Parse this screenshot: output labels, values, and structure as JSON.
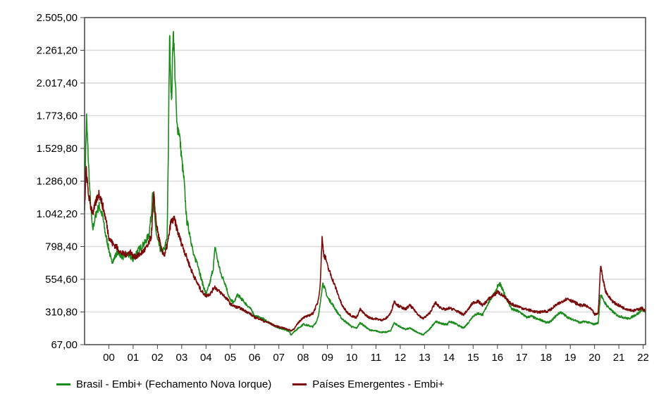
{
  "chart_data": {
    "type": "line",
    "y_ticks": [
      "67,00",
      "310,80",
      "554,60",
      "798,40",
      "1.042,20",
      "1.286,00",
      "1.529,80",
      "1.773,60",
      "2.017,40",
      "2.261,20",
      "2.505,00"
    ],
    "ylim": [
      67,
      2505
    ],
    "x_ticks": [
      "00",
      "01",
      "02",
      "03",
      "04",
      "05",
      "06",
      "07",
      "08",
      "09",
      "10",
      "11",
      "12",
      "13",
      "14",
      "15",
      "16",
      "17",
      "18",
      "19",
      "20",
      "21",
      "22"
    ],
    "xlim": [
      1999.0,
      2022.1
    ],
    "grid": true,
    "legend_position": "bottom-left",
    "series": [
      {
        "name": "Brasil - Embi+ (Fechamento Nova Iorque)",
        "color": "#1a8a1a",
        "points": [
          [
            1999.0,
            1150
          ],
          [
            1999.08,
            1760
          ],
          [
            1999.17,
            1380
          ],
          [
            1999.25,
            1100
          ],
          [
            1999.33,
            920
          ],
          [
            1999.42,
            1000
          ],
          [
            1999.5,
            1060
          ],
          [
            1999.6,
            1100
          ],
          [
            1999.75,
            1020
          ],
          [
            1999.85,
            900
          ],
          [
            2000.0,
            780
          ],
          [
            2000.1,
            690
          ],
          [
            2000.2,
            700
          ],
          [
            2000.35,
            760
          ],
          [
            2000.5,
            730
          ],
          [
            2000.6,
            720
          ],
          [
            2000.75,
            740
          ],
          [
            2000.9,
            720
          ],
          [
            2001.0,
            700
          ],
          [
            2001.15,
            760
          ],
          [
            2001.3,
            790
          ],
          [
            2001.5,
            830
          ],
          [
            2001.65,
            890
          ],
          [
            2001.75,
            1040
          ],
          [
            2001.8,
            1230
          ],
          [
            2001.85,
            1080
          ],
          [
            2001.95,
            900
          ],
          [
            2002.0,
            850
          ],
          [
            2002.15,
            760
          ],
          [
            2002.3,
            780
          ],
          [
            2002.4,
            880
          ],
          [
            2002.45,
            1500
          ],
          [
            2002.5,
            2390
          ],
          [
            2002.58,
            1850
          ],
          [
            2002.65,
            2440
          ],
          [
            2002.72,
            2100
          ],
          [
            2002.8,
            1700
          ],
          [
            2002.9,
            1650
          ],
          [
            2003.0,
            1450
          ],
          [
            2003.1,
            1280
          ],
          [
            2003.2,
            1000
          ],
          [
            2003.35,
            880
          ],
          [
            2003.5,
            720
          ],
          [
            2003.65,
            680
          ],
          [
            2003.8,
            560
          ],
          [
            2003.95,
            470
          ],
          [
            2004.0,
            440
          ],
          [
            2004.15,
            520
          ],
          [
            2004.3,
            640
          ],
          [
            2004.38,
            800
          ],
          [
            2004.45,
            720
          ],
          [
            2004.6,
            600
          ],
          [
            2004.8,
            520
          ],
          [
            2004.95,
            420
          ],
          [
            2005.0,
            400
          ],
          [
            2005.15,
            380
          ],
          [
            2005.3,
            440
          ],
          [
            2005.5,
            400
          ],
          [
            2005.7,
            360
          ],
          [
            2005.9,
            320
          ],
          [
            2006.0,
            280
          ],
          [
            2006.2,
            270
          ],
          [
            2006.35,
            260
          ],
          [
            2006.5,
            240
          ],
          [
            2006.7,
            220
          ],
          [
            2006.9,
            200
          ],
          [
            2007.0,
            190
          ],
          [
            2007.2,
            180
          ],
          [
            2007.4,
            170
          ],
          [
            2007.5,
            140
          ],
          [
            2007.6,
            160
          ],
          [
            2007.8,
            190
          ],
          [
            2007.95,
            210
          ],
          [
            2008.0,
            220
          ],
          [
            2008.2,
            210
          ],
          [
            2008.4,
            200
          ],
          [
            2008.55,
            240
          ],
          [
            2008.65,
            300
          ],
          [
            2008.72,
            390
          ],
          [
            2008.8,
            530
          ],
          [
            2008.9,
            480
          ],
          [
            2008.95,
            450
          ],
          [
            2009.0,
            420
          ],
          [
            2009.2,
            370
          ],
          [
            2009.4,
            310
          ],
          [
            2009.6,
            260
          ],
          [
            2009.8,
            230
          ],
          [
            2009.95,
            210
          ],
          [
            2010.0,
            200
          ],
          [
            2010.2,
            190
          ],
          [
            2010.35,
            230
          ],
          [
            2010.5,
            210
          ],
          [
            2010.7,
            180
          ],
          [
            2010.9,
            170
          ],
          [
            2011.0,
            170
          ],
          [
            2011.2,
            160
          ],
          [
            2011.4,
            160
          ],
          [
            2011.6,
            170
          ],
          [
            2011.75,
            230
          ],
          [
            2011.9,
            210
          ],
          [
            2012.0,
            200
          ],
          [
            2012.2,
            180
          ],
          [
            2012.4,
            190
          ],
          [
            2012.6,
            170
          ],
          [
            2012.8,
            150
          ],
          [
            2012.95,
            140
          ],
          [
            2013.0,
            150
          ],
          [
            2013.2,
            180
          ],
          [
            2013.45,
            240
          ],
          [
            2013.6,
            230
          ],
          [
            2013.8,
            220
          ],
          [
            2013.95,
            220
          ],
          [
            2014.0,
            240
          ],
          [
            2014.2,
            230
          ],
          [
            2014.4,
            210
          ],
          [
            2014.6,
            190
          ],
          [
            2014.8,
            230
          ],
          [
            2014.95,
            270
          ],
          [
            2015.0,
            280
          ],
          [
            2015.2,
            300
          ],
          [
            2015.4,
            290
          ],
          [
            2015.6,
            370
          ],
          [
            2015.8,
            430
          ],
          [
            2015.95,
            470
          ],
          [
            2016.0,
            500
          ],
          [
            2016.1,
            520
          ],
          [
            2016.2,
            480
          ],
          [
            2016.4,
            400
          ],
          [
            2016.6,
            330
          ],
          [
            2016.8,
            320
          ],
          [
            2017.0,
            300
          ],
          [
            2017.2,
            270
          ],
          [
            2017.4,
            280
          ],
          [
            2017.6,
            260
          ],
          [
            2017.8,
            250
          ],
          [
            2017.95,
            240
          ],
          [
            2018.0,
            230
          ],
          [
            2018.2,
            240
          ],
          [
            2018.4,
            280
          ],
          [
            2018.6,
            310
          ],
          [
            2018.75,
            290
          ],
          [
            2018.9,
            270
          ],
          [
            2019.0,
            260
          ],
          [
            2019.2,
            250
          ],
          [
            2019.4,
            230
          ],
          [
            2019.6,
            240
          ],
          [
            2019.8,
            230
          ],
          [
            2019.95,
            220
          ],
          [
            2020.0,
            220
          ],
          [
            2020.15,
            230
          ],
          [
            2020.25,
            450
          ],
          [
            2020.35,
            400
          ],
          [
            2020.5,
            360
          ],
          [
            2020.7,
            320
          ],
          [
            2020.9,
            290
          ],
          [
            2021.0,
            280
          ],
          [
            2021.2,
            270
          ],
          [
            2021.4,
            260
          ],
          [
            2021.6,
            280
          ],
          [
            2021.8,
            300
          ],
          [
            2021.95,
            330
          ],
          [
            2022.0,
            320
          ],
          [
            2022.1,
            310
          ]
        ]
      },
      {
        "name": "Países Emergentes - Embi+",
        "color": "#7a0a0a",
        "points": [
          [
            1999.0,
            1050
          ],
          [
            1999.06,
            1380
          ],
          [
            1999.15,
            1200
          ],
          [
            1999.25,
            1100
          ],
          [
            1999.35,
            1050
          ],
          [
            1999.5,
            1150
          ],
          [
            1999.6,
            1200
          ],
          [
            1999.75,
            1100
          ],
          [
            1999.9,
            980
          ],
          [
            2000.0,
            870
          ],
          [
            2000.15,
            820
          ],
          [
            2000.3,
            800
          ],
          [
            2000.5,
            750
          ],
          [
            2000.7,
            740
          ],
          [
            2000.9,
            760
          ],
          [
            2001.0,
            720
          ],
          [
            2001.2,
            730
          ],
          [
            2001.4,
            760
          ],
          [
            2001.6,
            800
          ],
          [
            2001.75,
            880
          ],
          [
            2001.85,
            1180
          ],
          [
            2001.95,
            980
          ],
          [
            2002.0,
            920
          ],
          [
            2002.15,
            780
          ],
          [
            2002.3,
            730
          ],
          [
            2002.45,
            850
          ],
          [
            2002.55,
            980
          ],
          [
            2002.7,
            1000
          ],
          [
            2002.85,
            900
          ],
          [
            2003.0,
            820
          ],
          [
            2003.2,
            720
          ],
          [
            2003.4,
            620
          ],
          [
            2003.6,
            540
          ],
          [
            2003.8,
            470
          ],
          [
            2004.0,
            430
          ],
          [
            2004.2,
            450
          ],
          [
            2004.35,
            500
          ],
          [
            2004.5,
            470
          ],
          [
            2004.7,
            440
          ],
          [
            2004.9,
            400
          ],
          [
            2005.0,
            370
          ],
          [
            2005.2,
            350
          ],
          [
            2005.4,
            340
          ],
          [
            2005.6,
            320
          ],
          [
            2005.8,
            300
          ],
          [
            2006.0,
            270
          ],
          [
            2006.2,
            260
          ],
          [
            2006.4,
            240
          ],
          [
            2006.6,
            230
          ],
          [
            2006.8,
            210
          ],
          [
            2007.0,
            200
          ],
          [
            2007.2,
            190
          ],
          [
            2007.4,
            180
          ],
          [
            2007.5,
            170
          ],
          [
            2007.65,
            190
          ],
          [
            2007.8,
            230
          ],
          [
            2007.95,
            260
          ],
          [
            2008.0,
            270
          ],
          [
            2008.2,
            280
          ],
          [
            2008.4,
            300
          ],
          [
            2008.6,
            380
          ],
          [
            2008.7,
            500
          ],
          [
            2008.78,
            860
          ],
          [
            2008.85,
            740
          ],
          [
            2008.95,
            700
          ],
          [
            2009.0,
            650
          ],
          [
            2009.2,
            560
          ],
          [
            2009.4,
            460
          ],
          [
            2009.6,
            360
          ],
          [
            2009.8,
            310
          ],
          [
            2009.95,
            290
          ],
          [
            2010.0,
            280
          ],
          [
            2010.2,
            270
          ],
          [
            2010.35,
            330
          ],
          [
            2010.5,
            300
          ],
          [
            2010.7,
            270
          ],
          [
            2010.9,
            260
          ],
          [
            2011.0,
            260
          ],
          [
            2011.2,
            250
          ],
          [
            2011.4,
            260
          ],
          [
            2011.6,
            300
          ],
          [
            2011.75,
            390
          ],
          [
            2011.9,
            360
          ],
          [
            2012.0,
            350
          ],
          [
            2012.2,
            330
          ],
          [
            2012.4,
            360
          ],
          [
            2012.6,
            320
          ],
          [
            2012.8,
            280
          ],
          [
            2012.95,
            260
          ],
          [
            2013.0,
            270
          ],
          [
            2013.2,
            300
          ],
          [
            2013.45,
            380
          ],
          [
            2013.6,
            350
          ],
          [
            2013.8,
            330
          ],
          [
            2013.95,
            330
          ],
          [
            2014.0,
            340
          ],
          [
            2014.2,
            330
          ],
          [
            2014.4,
            310
          ],
          [
            2014.6,
            290
          ],
          [
            2014.8,
            330
          ],
          [
            2014.95,
            370
          ],
          [
            2015.0,
            380
          ],
          [
            2015.2,
            390
          ],
          [
            2015.4,
            360
          ],
          [
            2015.6,
            400
          ],
          [
            2015.8,
            430
          ],
          [
            2015.95,
            450
          ],
          [
            2016.0,
            460
          ],
          [
            2016.1,
            450
          ],
          [
            2016.3,
            420
          ],
          [
            2016.5,
            380
          ],
          [
            2016.7,
            360
          ],
          [
            2016.9,
            350
          ],
          [
            2017.0,
            340
          ],
          [
            2017.2,
            330
          ],
          [
            2017.4,
            320
          ],
          [
            2017.6,
            310
          ],
          [
            2017.8,
            310
          ],
          [
            2017.95,
            320
          ],
          [
            2018.0,
            310
          ],
          [
            2018.2,
            330
          ],
          [
            2018.4,
            360
          ],
          [
            2018.6,
            380
          ],
          [
            2018.75,
            400
          ],
          [
            2018.9,
            410
          ],
          [
            2019.0,
            400
          ],
          [
            2019.2,
            380
          ],
          [
            2019.4,
            360
          ],
          [
            2019.6,
            360
          ],
          [
            2019.8,
            340
          ],
          [
            2019.95,
            310
          ],
          [
            2020.0,
            290
          ],
          [
            2020.15,
            300
          ],
          [
            2020.25,
            660
          ],
          [
            2020.32,
            580
          ],
          [
            2020.45,
            470
          ],
          [
            2020.6,
            420
          ],
          [
            2020.8,
            380
          ],
          [
            2021.0,
            360
          ],
          [
            2021.2,
            340
          ],
          [
            2021.4,
            330
          ],
          [
            2021.6,
            320
          ],
          [
            2021.8,
            330
          ],
          [
            2021.95,
            340
          ],
          [
            2022.0,
            330
          ],
          [
            2022.1,
            320
          ]
        ]
      }
    ]
  }
}
